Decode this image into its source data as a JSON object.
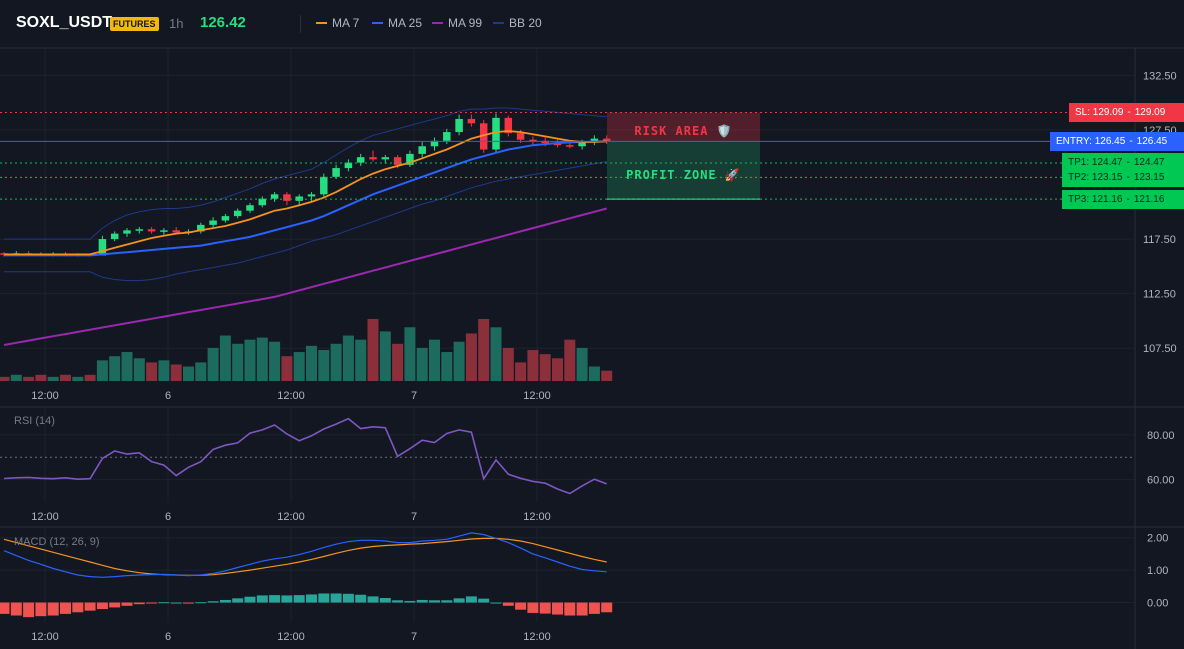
{
  "header": {
    "symbol": "SOXL_USDT",
    "badge": "FUTURES",
    "timeframe": "1h",
    "price": "126.42"
  },
  "legend": [
    {
      "label": "MA 7",
      "color": "#f7931a"
    },
    {
      "label": "MA 25",
      "color": "#2962ff"
    },
    {
      "label": "MA 99",
      "color": "#9c27b0"
    },
    {
      "label": "BB 20",
      "color": "#1e3a8a"
    }
  ],
  "zones": {
    "risk_label": "RISK AREA 🛡️",
    "profit_label": "PROFIT ZONE 🚀"
  },
  "levels": [
    {
      "label": "SL: 129.09",
      "value": 129.09,
      "color": "#f23645"
    },
    {
      "label": "ENTRY: 126.45",
      "value": 126.45,
      "color": "#2962ff"
    },
    {
      "label": "TP1: 124.47",
      "value": 124.47,
      "color": "#00c853"
    },
    {
      "label": "TP2: 123.15",
      "value": 123.15,
      "color": "#00c853"
    },
    {
      "label": "TP3: 121.16",
      "value": 121.16,
      "color": "#00c853"
    }
  ],
  "panes": {
    "rsi_label": "RSI (14)",
    "macd_label": "MACD (12, 26, 9)"
  },
  "chart_data": [
    {
      "type": "candlestick",
      "y_ticks": [
        132.5,
        127.5,
        117.5,
        112.5,
        107.5
      ],
      "x_ticks": [
        "12:00",
        "6",
        "12:00",
        "7",
        "12:00"
      ],
      "ylim": [
        104.5,
        135.0
      ],
      "candles": [
        [
          116.2,
          116.3,
          115.9,
          116.1
        ],
        [
          116.1,
          116.4,
          116.0,
          116.2
        ],
        [
          116.2,
          116.4,
          116.0,
          116.1
        ],
        [
          116.1,
          116.3,
          115.9,
          116.0
        ],
        [
          116.0,
          116.3,
          115.9,
          116.1
        ],
        [
          116.1,
          116.3,
          115.9,
          116.0
        ],
        [
          116.0,
          116.2,
          115.9,
          116.1
        ],
        [
          116.1,
          116.2,
          115.9,
          116.0
        ],
        [
          116.0,
          117.8,
          116.0,
          117.5
        ],
        [
          117.5,
          118.2,
          117.3,
          118.0
        ],
        [
          118.0,
          118.5,
          117.7,
          118.3
        ],
        [
          118.3,
          118.6,
          118.0,
          118.4
        ],
        [
          118.4,
          118.6,
          118.0,
          118.2
        ],
        [
          118.2,
          118.5,
          117.9,
          118.3
        ],
        [
          118.3,
          118.6,
          118.0,
          118.1
        ],
        [
          118.1,
          118.4,
          117.9,
          118.2
        ],
        [
          118.2,
          119.0,
          118.0,
          118.8
        ],
        [
          118.8,
          119.5,
          118.6,
          119.2
        ],
        [
          119.2,
          119.8,
          119.0,
          119.6
        ],
        [
          119.6,
          120.3,
          119.4,
          120.1
        ],
        [
          120.1,
          120.8,
          119.9,
          120.6
        ],
        [
          120.6,
          121.4,
          120.4,
          121.2
        ],
        [
          121.2,
          121.8,
          120.9,
          121.6
        ],
        [
          121.6,
          121.8,
          120.6,
          121.0
        ],
        [
          121.0,
          121.6,
          120.5,
          121.4
        ],
        [
          121.4,
          121.8,
          121.0,
          121.6
        ],
        [
          121.6,
          123.5,
          121.4,
          123.2
        ],
        [
          123.2,
          124.3,
          123.0,
          124.0
        ],
        [
          124.0,
          124.8,
          123.7,
          124.5
        ],
        [
          124.5,
          125.3,
          124.2,
          125.0
        ],
        [
          125.0,
          125.6,
          124.6,
          124.8
        ],
        [
          124.8,
          125.2,
          124.4,
          125.0
        ],
        [
          125.0,
          125.2,
          124.0,
          124.3
        ],
        [
          124.3,
          125.6,
          124.1,
          125.3
        ],
        [
          125.3,
          126.4,
          125.0,
          126.0
        ],
        [
          126.0,
          126.8,
          125.6,
          126.5
        ],
        [
          126.5,
          127.6,
          126.2,
          127.3
        ],
        [
          127.3,
          128.9,
          127.0,
          128.5
        ],
        [
          128.5,
          128.9,
          127.8,
          128.1
        ],
        [
          128.1,
          128.4,
          125.4,
          125.7
        ],
        [
          125.7,
          129.0,
          125.4,
          128.6
        ],
        [
          128.6,
          128.8,
          126.9,
          127.2
        ],
        [
          127.2,
          127.5,
          126.3,
          126.6
        ],
        [
          126.6,
          126.9,
          126.1,
          126.5
        ],
        [
          126.5,
          126.8,
          126.0,
          126.3
        ],
        [
          126.3,
          126.6,
          125.9,
          126.1
        ],
        [
          126.1,
          126.4,
          125.8,
          126.0
        ],
        [
          126.0,
          126.6,
          125.7,
          126.4
        ],
        [
          126.4,
          127.0,
          126.1,
          126.7
        ],
        [
          126.7,
          127.0,
          126.2,
          126.45
        ]
      ],
      "ma7": [
        116.1,
        116.1,
        116.1,
        116.1,
        116.1,
        116.1,
        116.1,
        116.1,
        116.4,
        116.7,
        117.0,
        117.3,
        117.6,
        117.8,
        118.0,
        118.1,
        118.3,
        118.5,
        118.7,
        119.0,
        119.3,
        119.7,
        120.1,
        120.3,
        120.6,
        120.9,
        121.3,
        121.8,
        122.4,
        123.0,
        123.5,
        123.9,
        124.2,
        124.5,
        124.9,
        125.3,
        125.7,
        126.2,
        126.7,
        127.0,
        127.3,
        127.4,
        127.3,
        127.1,
        126.9,
        126.7,
        126.5,
        126.4,
        126.4,
        126.45
      ],
      "ma25": [
        116.0,
        116.0,
        116.0,
        116.0,
        116.0,
        116.0,
        116.0,
        116.0,
        116.1,
        116.2,
        116.3,
        116.4,
        116.5,
        116.6,
        116.7,
        116.8,
        116.9,
        117.1,
        117.3,
        117.5,
        117.7,
        118.0,
        118.3,
        118.6,
        118.9,
        119.2,
        119.6,
        120.1,
        120.6,
        121.1,
        121.6,
        122.0,
        122.4,
        122.8,
        123.2,
        123.6,
        124.0,
        124.4,
        124.8,
        125.1,
        125.4,
        125.7,
        125.9,
        126.1,
        126.2,
        126.3,
        126.35,
        126.4,
        126.42,
        126.45
      ],
      "ma99": [
        107.8,
        108.0,
        108.2,
        108.4,
        108.6,
        108.8,
        109.0,
        109.2,
        109.4,
        109.6,
        109.8,
        110.0,
        110.2,
        110.4,
        110.6,
        110.8,
        111.0,
        111.2,
        111.4,
        111.6,
        111.8,
        112.0,
        112.2,
        112.5,
        112.8,
        113.1,
        113.4,
        113.7,
        114.0,
        114.3,
        114.6,
        114.9,
        115.2,
        115.5,
        115.8,
        116.1,
        116.4,
        116.7,
        117.0,
        117.3,
        117.6,
        117.9,
        118.2,
        118.5,
        118.8,
        119.1,
        119.4,
        119.7,
        120.0,
        120.3
      ],
      "bb_upper": [
        117.5,
        117.5,
        117.5,
        117.5,
        117.5,
        117.5,
        117.5,
        117.5,
        118.5,
        119.2,
        119.7,
        120.0,
        120.2,
        120.3,
        120.3,
        120.4,
        120.6,
        120.9,
        121.3,
        121.7,
        122.1,
        122.6,
        123.0,
        123.3,
        123.6,
        123.9,
        124.5,
        125.2,
        125.9,
        126.5,
        127.0,
        127.3,
        127.6,
        127.9,
        128.2,
        128.5,
        128.8,
        129.2,
        129.4,
        129.4,
        129.5,
        129.5,
        129.4,
        129.3,
        129.2,
        129.1,
        129.0,
        128.9,
        128.8,
        128.7
      ],
      "bb_lower": [
        114.5,
        114.5,
        114.5,
        114.5,
        114.5,
        114.5,
        114.5,
        114.5,
        114.0,
        113.8,
        113.7,
        113.7,
        113.8,
        114.0,
        114.3,
        114.5,
        114.7,
        114.9,
        115.1,
        115.3,
        115.6,
        115.9,
        116.2,
        116.5,
        116.9,
        117.3,
        117.6,
        117.9,
        118.3,
        118.7,
        119.1,
        119.5,
        119.9,
        120.3,
        120.7,
        121.0,
        121.4,
        121.8,
        122.2,
        122.5,
        122.8,
        123.0,
        123.2,
        123.4,
        123.6,
        123.8,
        124.0,
        124.2,
        124.4,
        124.6
      ],
      "volume": [
        2,
        3,
        2,
        3,
        2,
        3,
        2,
        3,
        10,
        12,
        14,
        11,
        9,
        10,
        8,
        7,
        9,
        16,
        22,
        18,
        20,
        21,
        19,
        12,
        14,
        17,
        15,
        18,
        22,
        20,
        30,
        24,
        18,
        26,
        16,
        20,
        14,
        19,
        23,
        30,
        26,
        16,
        9,
        15,
        13,
        11,
        20,
        16,
        7,
        5
      ]
    },
    {
      "type": "line",
      "name": "RSI (14)",
      "y_ticks": [
        80.0,
        60.0
      ],
      "ylim": [
        50,
        92
      ],
      "reference": 70,
      "values": [
        60.5,
        60.8,
        61.0,
        60.6,
        60.4,
        60.8,
        60.2,
        60.4,
        69.5,
        72.8,
        71.4,
        72.0,
        68.0,
        66.5,
        61.8,
        65.5,
        68.0,
        73.5,
        75.4,
        76.4,
        80.8,
        82.2,
        84.4,
        80.4,
        77.4,
        79.6,
        82.6,
        84.8,
        87.2,
        82.8,
        83.6,
        83.2,
        70.4,
        73.8,
        77.6,
        76.6,
        80.6,
        82.2,
        81.2,
        60.4,
        68.8,
        62.4,
        60.6,
        59.2,
        58.4,
        55.8,
        53.8,
        57.2,
        60.2,
        58.1
      ]
    },
    {
      "type": "line",
      "name": "MACD (12, 26, 9)",
      "y_ticks": [
        2.0,
        1.0,
        0.0
      ],
      "ylim": [
        -0.6,
        2.3
      ],
      "macd": [
        1.6,
        1.45,
        1.3,
        1.18,
        1.05,
        0.95,
        0.85,
        0.8,
        0.78,
        0.8,
        0.83,
        0.85,
        0.86,
        0.87,
        0.85,
        0.83,
        0.85,
        0.9,
        0.98,
        1.08,
        1.18,
        1.28,
        1.35,
        1.4,
        1.48,
        1.58,
        1.7,
        1.8,
        1.88,
        1.92,
        1.92,
        1.9,
        1.85,
        1.85,
        1.9,
        1.92,
        1.95,
        2.05,
        2.15,
        2.1,
        1.98,
        1.85,
        1.68,
        1.5,
        1.38,
        1.25,
        1.12,
        1.02,
        0.98,
        0.95
      ],
      "signal": [
        1.95,
        1.85,
        1.75,
        1.65,
        1.55,
        1.45,
        1.35,
        1.25,
        1.15,
        1.05,
        0.98,
        0.92,
        0.88,
        0.86,
        0.85,
        0.84,
        0.84,
        0.86,
        0.9,
        0.95,
        1.0,
        1.06,
        1.12,
        1.18,
        1.25,
        1.33,
        1.42,
        1.52,
        1.61,
        1.68,
        1.73,
        1.76,
        1.78,
        1.8,
        1.82,
        1.85,
        1.88,
        1.92,
        1.96,
        1.98,
        1.98,
        1.95,
        1.9,
        1.82,
        1.72,
        1.62,
        1.52,
        1.42,
        1.33,
        1.25
      ],
      "histogram": [
        -0.35,
        -0.4,
        -0.45,
        -0.42,
        -0.4,
        -0.35,
        -0.3,
        -0.25,
        -0.2,
        -0.15,
        -0.1,
        -0.05,
        -0.02,
        0.01,
        0.0,
        -0.01,
        0.01,
        0.04,
        0.08,
        0.13,
        0.18,
        0.22,
        0.23,
        0.22,
        0.23,
        0.25,
        0.28,
        0.28,
        0.27,
        0.24,
        0.19,
        0.14,
        0.07,
        0.05,
        0.08,
        0.07,
        0.07,
        0.13,
        0.19,
        0.12,
        0.0,
        -0.1,
        -0.22,
        -0.32,
        -0.34,
        -0.37,
        -0.4,
        -0.4,
        -0.35,
        -0.3
      ]
    }
  ]
}
